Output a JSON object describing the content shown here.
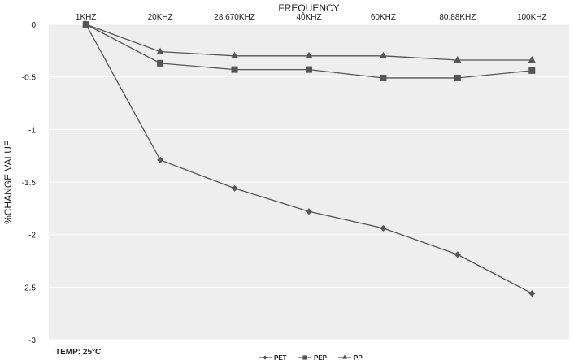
{
  "chart_data": {
    "type": "line",
    "xlabel": "FREQUENCY",
    "ylabel": "%CHANGE VALUE",
    "categories": [
      "1KHZ",
      "20KHZ",
      "28.670KHZ",
      "40KHZ",
      "60KHZ",
      "80.88KHZ",
      "100KHZ"
    ],
    "ylim": [
      -3,
      0
    ],
    "yticks": [
      "0",
      "-0.5",
      "-1",
      "-1.5",
      "-2",
      "-2.5",
      "-3"
    ],
    "ytick_values": [
      0,
      -0.5,
      -1,
      -1.5,
      -2,
      -2.5,
      -3
    ],
    "x_axis_position": "top",
    "grid": true,
    "legend_position": "bottom",
    "series": [
      {
        "name": "PET",
        "marker": "diamond",
        "values": [
          0,
          -1.29,
          -1.56,
          -1.78,
          -1.94,
          -2.19,
          -2.56
        ]
      },
      {
        "name": "PEP",
        "marker": "square",
        "values": [
          0,
          -0.37,
          -0.43,
          -0.43,
          -0.51,
          -0.51,
          -0.44
        ]
      },
      {
        "name": "PP",
        "marker": "triangle",
        "values": [
          0,
          -0.26,
          -0.3,
          -0.3,
          -0.3,
          -0.34,
          -0.34
        ]
      }
    ],
    "annotation": "TEMP: 25°C",
    "colors": {
      "plot_background": "#eeeeee",
      "series_line": "#555555",
      "gridline": "#ffffff"
    }
  }
}
